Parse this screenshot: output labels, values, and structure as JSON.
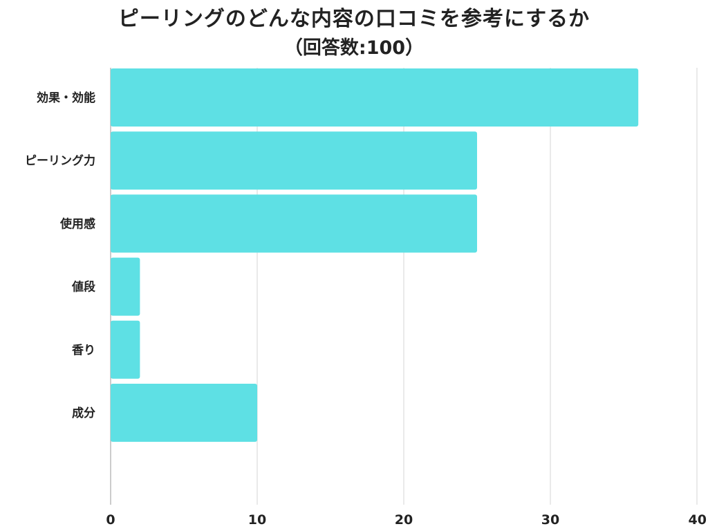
{
  "chart_data": {
    "type": "bar",
    "orientation": "horizontal",
    "title": "ピーリングのどんな内容の口コミを参考にするか",
    "subtitle": "（回答数:100）",
    "categories": [
      "効果・効能",
      "ピーリング力",
      "使用感",
      "値段",
      "香り",
      "成分"
    ],
    "values": [
      36,
      25,
      25,
      2,
      2,
      10
    ],
    "xlim": [
      0,
      40
    ],
    "xticks": [
      0,
      10,
      20,
      30,
      40
    ],
    "grid": true,
    "bar_color": "#5ee0e4",
    "grid_color": "#dddddd"
  }
}
